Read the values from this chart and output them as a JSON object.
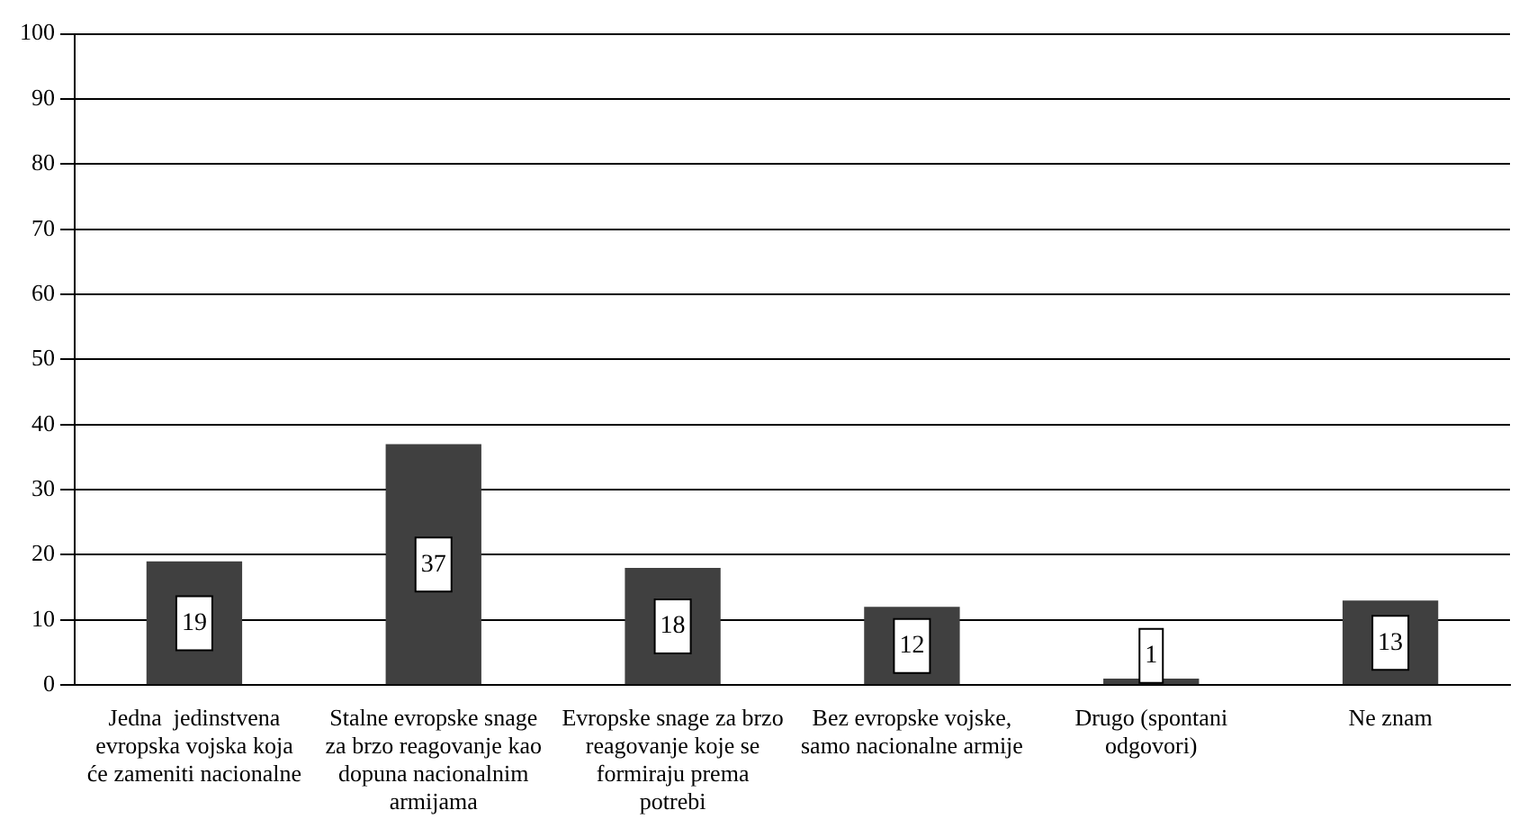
{
  "chart_data": {
    "type": "bar",
    "categories": [
      "Jedna  jedinstvena evropska vojska koja će zameniti nacionalne",
      "Stalne evropske snage za brzo reagovanje kao dopuna nacionalnim armijama",
      "Evropske snage za brzo reagovanje koje se formiraju prema potrebi",
      "Bez evropske vojske, samo nacionalne armije",
      "Drugo (spontani odgovori)",
      "Ne znam"
    ],
    "values": [
      19,
      37,
      18,
      12,
      1,
      13
    ],
    "color": "#404040",
    "ylim": [
      0,
      100
    ],
    "yticks": [
      0,
      10,
      20,
      30,
      40,
      50,
      60,
      70,
      80,
      90,
      100
    ],
    "grid": "y",
    "data_labels": true,
    "legend": false
  }
}
